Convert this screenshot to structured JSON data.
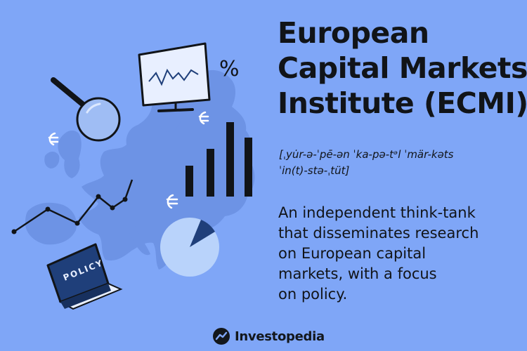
{
  "headline": {
    "lines": [
      "European",
      "Capital Markets",
      "Institute (ECMI)"
    ]
  },
  "pronunciation": {
    "lines": [
      "[ˌyu̇r-ə-ˈpē-ən ˈka-pə-tᵊl ˈmär-kəts",
      "ˈin(t)-stə-ˌtüt]"
    ]
  },
  "description": {
    "lines": [
      "An independent think-tank",
      "that disseminates research",
      "on European capital",
      "markets, with a focus",
      "on policy."
    ]
  },
  "illustration": {
    "book_label": "POLICY",
    "percent_symbol": "%",
    "icons": [
      "europe-map-icon",
      "magnifying-glass-icon",
      "monitor-chart-icon",
      "bar-chart-icon",
      "pie-chart-icon",
      "line-graph-icon",
      "policy-book-icon",
      "euro-sign-icon",
      "percent-icon"
    ]
  },
  "brand": {
    "name": "Investopedia",
    "logo_icon": "investopedia-logo-icon"
  },
  "colors": {
    "background": "#7fa6f7",
    "map": "#6f95e6",
    "ink": "#111418",
    "book": "#1f3f7a",
    "pie_light": "#b9d3fb",
    "pie_dark": "#1f3f7a"
  }
}
